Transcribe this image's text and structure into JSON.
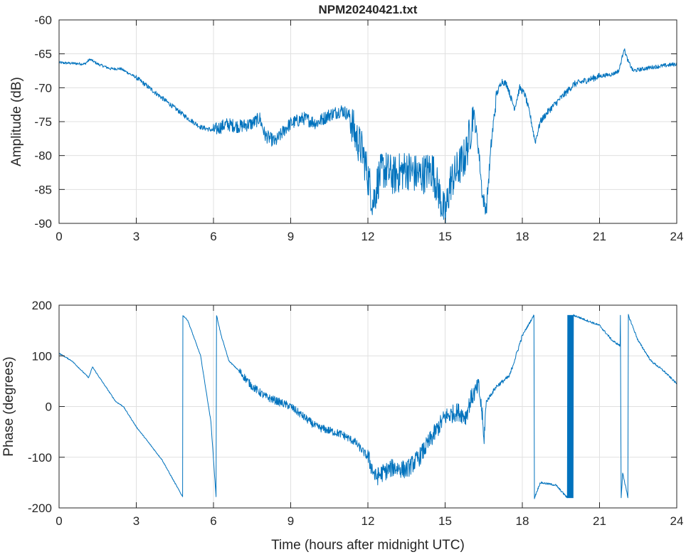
{
  "chart_data": [
    {
      "type": "line",
      "title": "NPM20240421.txt",
      "xlabel": "",
      "ylabel": "Amplitude (dB)",
      "xlim": [
        0,
        24
      ],
      "ylim": [
        -90,
        -60
      ],
      "xticks": [
        0,
        3,
        6,
        9,
        12,
        15,
        18,
        21,
        24
      ],
      "yticks": [
        -60,
        -65,
        -70,
        -75,
        -80,
        -85,
        -90
      ],
      "grid": true,
      "color": "#0072BD",
      "series": [
        {
          "name": "Amplitude",
          "points": [
            [
              0,
              -66.3
            ],
            [
              1.0,
              -66.5
            ],
            [
              1.2,
              -65.8
            ],
            [
              1.5,
              -66.5
            ],
            [
              2.0,
              -67.2
            ],
            [
              2.4,
              -67.2
            ],
            [
              3,
              -68.5
            ],
            [
              4,
              -71.5
            ],
            [
              5,
              -74.5
            ],
            [
              5.5,
              -75.8
            ],
            [
              6,
              -76.3
            ],
            [
              6.5,
              -75.4
            ],
            [
              7,
              -75.7
            ],
            [
              7.5,
              -75.3
            ],
            [
              7.8,
              -74.5
            ],
            [
              8,
              -77
            ],
            [
              8.4,
              -78
            ],
            [
              8.8,
              -76
            ],
            [
              9,
              -75.3
            ],
            [
              9.5,
              -74.5
            ],
            [
              10,
              -75.2
            ],
            [
              10.5,
              -74
            ],
            [
              11,
              -73.3
            ],
            [
              11.3,
              -74.2
            ],
            [
              11.5,
              -77
            ],
            [
              11.8,
              -79.5
            ],
            [
              12,
              -83
            ],
            [
              12.2,
              -87
            ],
            [
              12.4,
              -83.5
            ],
            [
              12.6,
              -82
            ],
            [
              13,
              -83
            ],
            [
              13.5,
              -82
            ],
            [
              14,
              -83
            ],
            [
              14.5,
              -82
            ],
            [
              14.8,
              -86
            ],
            [
              15,
              -89
            ],
            [
              15.2,
              -84
            ],
            [
              15.5,
              -82
            ],
            [
              15.8,
              -80
            ],
            [
              16,
              -76
            ],
            [
              16.1,
              -73.5
            ],
            [
              16.3,
              -79
            ],
            [
              16.45,
              -86
            ],
            [
              16.6,
              -88
            ],
            [
              16.8,
              -78
            ],
            [
              17,
              -71
            ],
            [
              17.2,
              -69
            ],
            [
              17.4,
              -69.5
            ],
            [
              17.6,
              -72
            ],
            [
              17.7,
              -73
            ],
            [
              17.9,
              -70
            ],
            [
              18.1,
              -71
            ],
            [
              18.3,
              -74
            ],
            [
              18.5,
              -78
            ],
            [
              18.7,
              -75
            ],
            [
              19,
              -73.5
            ],
            [
              19.5,
              -71.5
            ],
            [
              20,
              -69.5
            ],
            [
              21,
              -68.3
            ],
            [
              21.5,
              -68
            ],
            [
              21.75,
              -67.5
            ],
            [
              21.85,
              -66
            ],
            [
              21.95,
              -64.2
            ],
            [
              22.1,
              -66
            ],
            [
              22.3,
              -67.5
            ],
            [
              23,
              -67
            ],
            [
              24,
              -66.5
            ]
          ],
          "noise": [
            [
              0,
              3,
              0.2
            ],
            [
              3,
              6,
              0.35
            ],
            [
              6,
              11.3,
              1.0
            ],
            [
              11.3,
              16.1,
              3.0
            ],
            [
              16.1,
              17,
              1.2
            ],
            [
              17,
              21,
              0.5
            ],
            [
              21,
              24,
              0.3
            ]
          ]
        }
      ]
    },
    {
      "type": "line",
      "title": "",
      "xlabel": "Time (hours after midnight UTC)",
      "ylabel": "Phase (degrees)",
      "xlim": [
        0,
        24
      ],
      "ylim": [
        -200,
        200
      ],
      "xticks": [
        0,
        3,
        6,
        9,
        12,
        15,
        18,
        21,
        24
      ],
      "yticks": [
        200,
        100,
        0,
        -100,
        -200
      ],
      "grid": true,
      "color": "#0072BD",
      "series": [
        {
          "name": "Phase",
          "points": [
            [
              0,
              105
            ],
            [
              0.5,
              90
            ],
            [
              1.15,
              57
            ],
            [
              1.3,
              78
            ],
            [
              1.6,
              55
            ],
            [
              2.2,
              10
            ],
            [
              2.5,
              0
            ],
            [
              3,
              -40
            ],
            [
              4,
              -105
            ],
            [
              4.8,
              -178
            ],
            [
              4.81,
              180
            ],
            [
              5,
              170
            ],
            [
              5.5,
              100
            ],
            [
              5.9,
              -30
            ],
            [
              6.1,
              -178
            ],
            [
              6.12,
              180
            ],
            [
              6.3,
              140
            ],
            [
              6.6,
              90
            ],
            [
              7,
              70
            ],
            [
              7.5,
              40
            ],
            [
              8,
              20
            ],
            [
              9,
              0
            ],
            [
              10,
              -40
            ],
            [
              11,
              -55
            ],
            [
              11.5,
              -70
            ],
            [
              12,
              -100
            ],
            [
              12.3,
              -140
            ],
            [
              12.6,
              -130
            ],
            [
              13,
              -120
            ],
            [
              13.5,
              -125
            ],
            [
              14,
              -100
            ],
            [
              14.5,
              -60
            ],
            [
              15,
              -20
            ],
            [
              15.5,
              -10
            ],
            [
              15.8,
              -20
            ],
            [
              16,
              15
            ],
            [
              16.3,
              40
            ],
            [
              16.45,
              -20
            ],
            [
              16.5,
              -70
            ],
            [
              16.6,
              10
            ],
            [
              17,
              40
            ],
            [
              17.5,
              60
            ],
            [
              18,
              140
            ],
            [
              18.45,
              180
            ],
            [
              18.47,
              -180
            ],
            [
              18.7,
              -150
            ],
            [
              19.3,
              -155
            ],
            [
              19.75,
              -180
            ],
            [
              20.0,
              180
            ],
            [
              20.5,
              170
            ],
            [
              21,
              160
            ],
            [
              21.5,
              130
            ],
            [
              21.8,
              120
            ],
            [
              21.81,
              180
            ],
            [
              21.84,
              -180
            ],
            [
              21.9,
              -130
            ],
            [
              22.1,
              -180
            ],
            [
              22.12,
              180
            ],
            [
              22.5,
              130
            ],
            [
              23,
              90
            ],
            [
              23.5,
              70
            ],
            [
              24,
              45
            ]
          ],
          "noise": [
            [
              0,
              7,
              1
            ],
            [
              7,
              12,
              8
            ],
            [
              12,
              16.6,
              18
            ],
            [
              16.6,
              18,
              4
            ],
            [
              18,
              24,
              2
            ]
          ],
          "dense_wrap_interval": [
            19.75,
            20.0
          ]
        }
      ]
    }
  ]
}
